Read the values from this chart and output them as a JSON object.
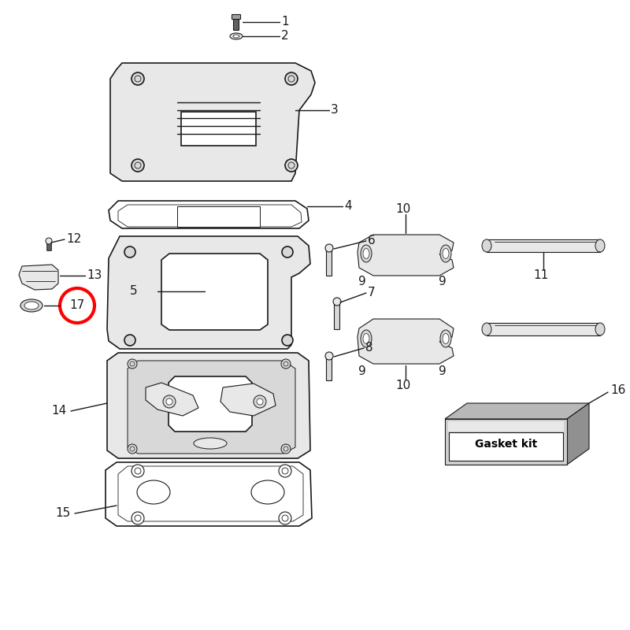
{
  "background_color": "#ffffff",
  "line_color": "#1a1a1a",
  "label_color": "#1a1a1a",
  "highlight_circle_color": "#ff0000",
  "highlight_number": "17",
  "gasket_kit_label": "Gasket kit",
  "gray_light": "#c8c8c8",
  "gray_mid": "#a0a0a0",
  "gray_dark": "#606060",
  "gray_fill": "#d8d8d8",
  "gray_fill2": "#e8e8e8"
}
